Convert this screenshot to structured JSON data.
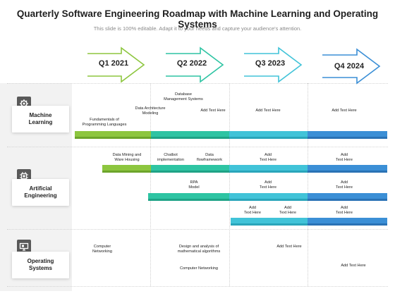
{
  "header": {
    "title": "Quarterly Software Engineering Roadmap with Machine Learning and Operating Systems",
    "subtitle": "This slide is 100% editable. Adapt it to your needs and capture your audience's attention."
  },
  "quarters": [
    {
      "label": "Q1 2021",
      "color": "#8dc63f"
    },
    {
      "label": "Q2 2022",
      "color": "#2ec4a3"
    },
    {
      "label": "Q3 2023",
      "color": "#41c3d8"
    },
    {
      "label": "Q4 2024",
      "color": "#3b8fd6"
    }
  ],
  "categories": [
    {
      "label_1": "Machine",
      "label_2": "Learning",
      "icon": "gear-head-icon"
    },
    {
      "label_1": "Artificial",
      "label_2": "Engineering",
      "icon": "chip-icon"
    },
    {
      "label_1": "Operating",
      "label_2": "Systems",
      "icon": "monitor-icon"
    }
  ],
  "ml": {
    "fundamentals_1": "Fundamentals of",
    "fundamentals_2": "Programming Languages",
    "arch_1": "Data Architecture",
    "arch_2": "Modeling",
    "db_1": "Database",
    "db_2": "Management Systems",
    "q2_add": "Add Text Here",
    "q3_add": "Add Text Here",
    "q4_add": "Add Text Here"
  },
  "ae": {
    "mining_1": "Data Mining and",
    "mining_2": "Ware Housing",
    "chatbot_1": "Chatbot",
    "chatbot_2": "implementation",
    "dataflow_1": "Data",
    "dataflow_2": "flowframework",
    "r1_q3_1": "Add",
    "r1_q3_2": "Text Here",
    "r1_q4_1": "Add",
    "r1_q4_2": "Text Here",
    "rpa_1": "RPA",
    "rpa_2": "Model",
    "r2_q3_1": "Add",
    "r2_q3_2": "Text Here",
    "r2_q4_1": "Add",
    "r2_q4_2": "Text Here",
    "r3_q3a_1": "Add",
    "r3_q3a_2": "Text Here",
    "r3_q3b_1": "Add",
    "r3_q3b_2": "Text Here",
    "r3_q4_1": "Add",
    "r3_q4_2": "Text Here"
  },
  "os": {
    "cn_1": "Computer",
    "cn_2": "Networking",
    "design_1": "Design and analysis of",
    "design_2": "mathematical algorithms",
    "cn2": "Computer Networking",
    "q3_add": "Add Text Here",
    "q4_add": "Add Text Here"
  }
}
